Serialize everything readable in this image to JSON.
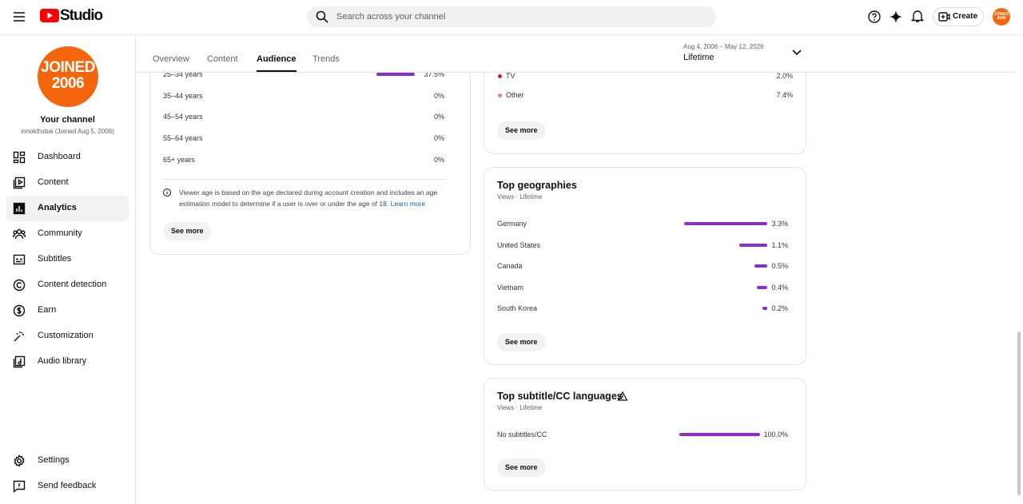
{
  "topbar": {
    "logo": "Studio",
    "search_placeholder": "Search across your channel",
    "create": "Create"
  },
  "avatar": [
    "JOINED",
    "2006"
  ],
  "channel": {
    "title": "Your channel",
    "subtitle": "innokthxbai (Joined Aug 5, 2006)"
  },
  "nav": [
    "Dashboard",
    "Content",
    "Analytics",
    "Community",
    "Subtitles",
    "Content detection",
    "Earn",
    "Customization",
    "Audio library"
  ],
  "nav_active": 2,
  "nav_bottom": [
    "Settings",
    "Send feedback"
  ],
  "tabs": [
    "Overview",
    "Content",
    "Audience",
    "Trends"
  ],
  "tab_active": 2,
  "date_range": {
    "range": "Aug 4, 2006 – May 12, 2026",
    "label": "Lifetime"
  },
  "age_card": {
    "rows": [
      {
        "label": "25–34 years",
        "value": 37.5,
        "value_label": "37.5%"
      },
      {
        "label": "35–44 years",
        "value": 0,
        "value_label": "0%"
      },
      {
        "label": "45–54 years",
        "value": 0,
        "value_label": "0%"
      },
      {
        "label": "55–64 years",
        "value": 0,
        "value_label": "0%"
      },
      {
        "label": "65+ years",
        "value": 0,
        "value_label": "0%"
      }
    ],
    "note": "Viewer age is based on the age declared during account creation and includes an age estimation model to determine if a user is over or under the age of 18.",
    "link": "Learn more",
    "button": "See more"
  },
  "device_card": {
    "rows": [
      {
        "label": "TV",
        "value": "2.0%",
        "color": "#c2185b"
      },
      {
        "label": "Other",
        "value": "7.4%",
        "color": "#e879a9"
      }
    ],
    "button": "See more"
  },
  "geo_card": {
    "title": "Top geographies",
    "subtitle": "Views · Lifetime",
    "rows": [
      {
        "label": "Germany",
        "value": 3.3,
        "value_label": "3.3%"
      },
      {
        "label": "United States",
        "value": 1.1,
        "value_label": "1.1%"
      },
      {
        "label": "Canada",
        "value": 0.5,
        "value_label": "0.5%"
      },
      {
        "label": "Vietnam",
        "value": 0.4,
        "value_label": "0.4%"
      },
      {
        "label": "South Korea",
        "value": 0.2,
        "value_label": "0.2%"
      }
    ],
    "button": "See more"
  },
  "subtitle_card": {
    "title": "Top subtitle/CC languages",
    "subtitle": "Views · Lifetime",
    "rows": [
      {
        "label": "No subtitles/CC",
        "value": 100.0,
        "value_label": "100.0%"
      }
    ],
    "button": "See more"
  }
}
